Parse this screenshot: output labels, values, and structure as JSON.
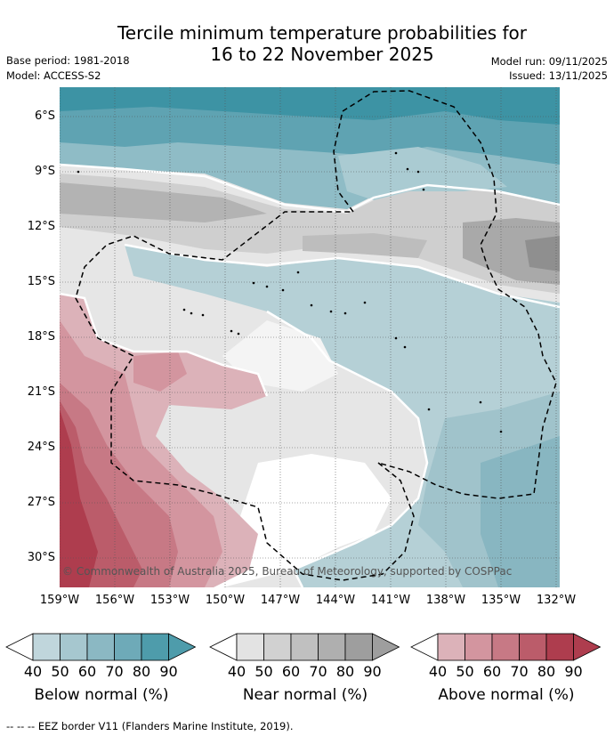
{
  "title": {
    "line1": "Tercile minimum temperature probabilities for",
    "line2": "16 to 22 November 2025"
  },
  "meta": {
    "base_period": "Base period: 1981-2018",
    "model": "Model: ACCESS-S2",
    "model_run": "Model run: 09/11/2025",
    "issued": "Issued: 13/11/2025"
  },
  "map": {
    "credit": "© Commonwealth of Australia 2025, Bureau of Meteorology, supported by COSPPac",
    "lat_ticks": [
      "6°S",
      "9°S",
      "12°S",
      "15°S",
      "18°S",
      "21°S",
      "24°S",
      "27°S",
      "30°S"
    ],
    "lon_ticks": [
      "159°W",
      "156°W",
      "153°W",
      "150°W",
      "147°W",
      "144°W",
      "141°W",
      "138°W",
      "135°W",
      "132°W"
    ]
  },
  "colorbars": [
    {
      "label": "Below normal (%)",
      "ticks": [
        "40",
        "50",
        "60",
        "70",
        "80",
        "90"
      ],
      "colors": [
        "#c0d6dc",
        "#a6c7cf",
        "#8bb8c3",
        "#6eaab8",
        "#4e9cab"
      ]
    },
    {
      "label": "Near normal (%)",
      "ticks": [
        "40",
        "50",
        "60",
        "70",
        "80",
        "90"
      ],
      "colors": [
        "#e3e3e3",
        "#d1d1d1",
        "#c0c0c0",
        "#afafaf",
        "#9e9e9e"
      ]
    },
    {
      "label": "Above normal (%)",
      "ticks": [
        "40",
        "50",
        "60",
        "70",
        "80",
        "90"
      ],
      "colors": [
        "#dcb2b9",
        "#d3959f",
        "#c77985",
        "#bb5c6a",
        "#ae3d4e"
      ]
    }
  ],
  "footnote": "--  --  -- EEZ border V11 (Flanders Marine Institute, 2019)."
}
